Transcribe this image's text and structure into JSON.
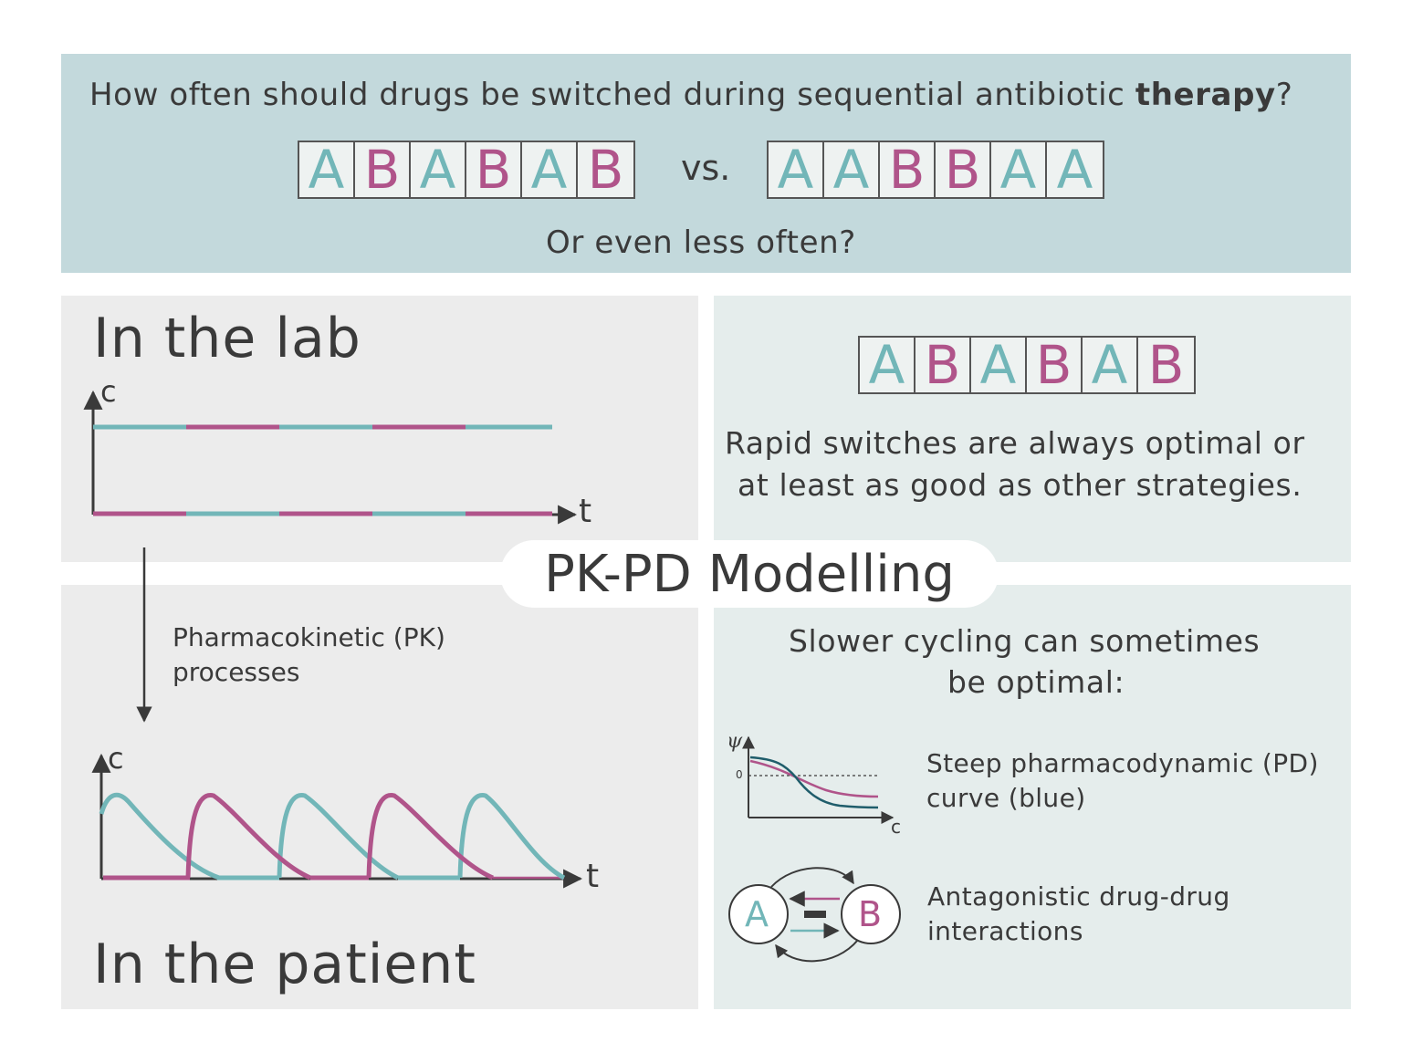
{
  "header": {
    "question_prefix": "How often should drugs be switched during sequential antibiotic ",
    "question_bold": "therapy",
    "question_suffix": "?",
    "vs": "vs.",
    "subquestion": "Or even less often?",
    "sequence_rapid": [
      "A",
      "B",
      "A",
      "B",
      "A",
      "B"
    ],
    "sequence_slow": [
      "A",
      "A",
      "B",
      "B",
      "A",
      "A"
    ]
  },
  "lab": {
    "title": "In the lab",
    "axis_y": "c",
    "axis_x": "t"
  },
  "transition": {
    "line1": "Pharmacokinetic (PK)",
    "line2": "processes"
  },
  "patient": {
    "title": "In the patient",
    "axis_y": "c",
    "axis_x": "t"
  },
  "center": {
    "label": "PK-PD Modelling"
  },
  "rapid": {
    "sequence": [
      "A",
      "B",
      "A",
      "B",
      "A",
      "B"
    ],
    "line1": "Rapid switches are always optimal or",
    "line2": "at least as good as other strategies."
  },
  "slow": {
    "heading1": "Slower cycling can sometimes",
    "heading2": "be optimal:",
    "pd_axis_y": "ψ",
    "pd_axis_x": "c",
    "pd_zero": "0",
    "pd_line1": "Steep pharmacodynamic (PD)",
    "pd_line2": "curve (blue)",
    "node_a": "A",
    "node_b": "B",
    "antag_line1": "Antagonistic drug-drug",
    "antag_line2": "interactions"
  },
  "colors": {
    "drug_a": "#72b6b8",
    "drug_b": "#b0548a",
    "pd_steep": "#1f5d6b",
    "header_bg": "#c3d9dc"
  }
}
